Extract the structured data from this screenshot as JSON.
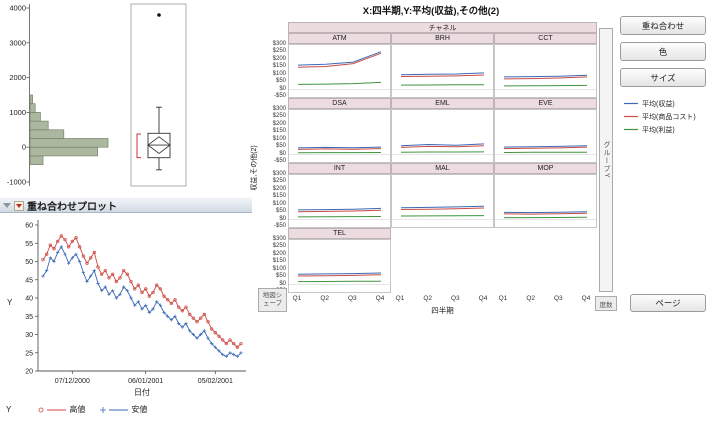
{
  "accent_colors": {
    "blue": "#3b6ab5",
    "red": "#cc4b44",
    "green": "#41953f",
    "histogram_fill": "#abb79e",
    "histogram_border": "#76826b"
  },
  "histogram_panel": {
    "y_ticks": [
      "4000",
      "3000",
      "2000",
      "1000",
      "0",
      "-1000"
    ],
    "chart_data": {
      "type": "bar",
      "orientation": "horizontal",
      "ylim": [
        -1000,
        4000
      ],
      "bins": [
        {
          "from": -500,
          "to": -250,
          "count": 5
        },
        {
          "from": -250,
          "to": 0,
          "count": 26
        },
        {
          "from": 0,
          "to": 250,
          "count": 30
        },
        {
          "from": 250,
          "to": 500,
          "count": 13
        },
        {
          "from": 500,
          "to": 750,
          "count": 7
        },
        {
          "from": 750,
          "to": 1000,
          "count": 4
        },
        {
          "from": 1000,
          "to": 1250,
          "count": 2
        },
        {
          "from": 1250,
          "to": 1500,
          "count": 1
        }
      ],
      "boxplot": {
        "whisker_low": -650,
        "q1": -300,
        "median": 60,
        "q3": 400,
        "whisker_high": 1150,
        "outliers": [
          3800
        ],
        "bracket": [
          -300,
          380
        ],
        "mean_diamond": {
          "top": 300,
          "mid": 60,
          "bottom": -180
        }
      }
    }
  },
  "overlay_panel": {
    "title": "重ね合わせプロット",
    "y_label": "Y",
    "x_label": "日付",
    "legend_label": "Y",
    "y_ticks": [
      60,
      55,
      50,
      45,
      40,
      35,
      30,
      25,
      20
    ],
    "x_ticks": [
      "07/12/2000",
      "06/01/2001",
      "05/02/2001"
    ],
    "chart_data": {
      "type": "line",
      "ylim": [
        20,
        60
      ],
      "x_tick_indices": [
        8,
        28,
        47
      ],
      "series": [
        {
          "name": "高値",
          "color_key": "red",
          "marker": "circle",
          "values": [
            50.5,
            52,
            54.5,
            53.5,
            55.5,
            57,
            56,
            54,
            55.5,
            56.5,
            54,
            51.5,
            49.5,
            51,
            52.5,
            48.5,
            46.5,
            47.5,
            45.5,
            46.5,
            44.5,
            45.5,
            47.5,
            46.5,
            44.5,
            42.5,
            43.5,
            41.5,
            42.5,
            40.5,
            41.5,
            43.5,
            42.5,
            40.5,
            39.5,
            38.5,
            39.5,
            37.5,
            36.5,
            37.5,
            35.5,
            34.5,
            33.5,
            34.5,
            35.5,
            33.5,
            31.5,
            30.5,
            29.5,
            28.5,
            27.5,
            28.5,
            27.5,
            26.5,
            27.5
          ]
        },
        {
          "name": "安値",
          "color_key": "blue",
          "marker": "plus",
          "values": [
            46,
            47.5,
            51,
            50,
            52.5,
            54,
            52,
            49.5,
            51,
            52,
            50,
            47,
            44.5,
            46,
            47.5,
            44,
            42,
            43,
            41,
            42,
            40,
            41,
            43,
            42,
            40,
            38,
            39,
            37,
            38,
            36,
            37,
            39,
            38,
            36,
            35,
            34,
            35,
            33,
            32,
            33,
            31,
            30,
            29,
            30,
            31,
            29,
            27.5,
            26.5,
            25.5,
            24.5,
            24,
            25,
            24.5,
            24,
            25
          ]
        }
      ]
    }
  },
  "graph_builder": {
    "title": "X:四半期,Y:平均(収益),その他(2)",
    "group_header": "チャネル",
    "y_axis_label": "収益,その他(2)",
    "x_axis_label": "四半期",
    "y_ticks": [
      "$300",
      "$250",
      "$200",
      "$150",
      "$100",
      "$50",
      "$0",
      "-$50"
    ],
    "x_ticks": [
      "Q1",
      "Q2",
      "Q3",
      "Q4"
    ],
    "buttons": {
      "overlay": "重ね合わせ",
      "color": "色",
      "size": "サイズ",
      "page": "ページ"
    },
    "drop_zones": {
      "group_y": "グループY",
      "freq": "度数",
      "map_shape": "地図シェープ"
    },
    "legend": [
      {
        "label": "平均(収益)",
        "color_key": "blue"
      },
      {
        "label": "平均(商品コスト)",
        "color_key": "red"
      },
      {
        "label": "平均(利益)",
        "color_key": "green"
      }
    ],
    "chart_data": {
      "type": "line",
      "small_multiples": true,
      "grid_columns": 3,
      "categories": [
        "Q1",
        "Q2",
        "Q3",
        "Q4"
      ],
      "ylim": [
        -50,
        300
      ],
      "series_keys": [
        "revenue",
        "cost",
        "profit"
      ],
      "panels": [
        {
          "name": "ATM",
          "revenue": [
            165,
            170,
            185,
            255
          ],
          "cost": [
            150,
            155,
            175,
            245
          ],
          "profit": [
            35,
            37,
            40,
            48
          ]
        },
        {
          "name": "BRH",
          "revenue": [
            100,
            103,
            105,
            112
          ],
          "cost": [
            88,
            90,
            92,
            98
          ],
          "profit": [
            30,
            31,
            32,
            33
          ]
        },
        {
          "name": "CCT",
          "revenue": [
            85,
            87,
            90,
            97
          ],
          "cost": [
            72,
            74,
            78,
            85
          ],
          "profit": [
            25,
            26,
            27,
            28
          ]
        },
        {
          "name": "DSA",
          "revenue": [
            45,
            48,
            46,
            50
          ],
          "cost": [
            35,
            38,
            36,
            40
          ],
          "profit": [
            12,
            13,
            13,
            14
          ]
        },
        {
          "name": "EML",
          "revenue": [
            60,
            68,
            63,
            72
          ],
          "cost": [
            48,
            55,
            52,
            60
          ],
          "profit": [
            16,
            17,
            17,
            18
          ]
        },
        {
          "name": "EVE",
          "revenue": [
            50,
            52,
            55,
            60
          ],
          "cost": [
            40,
            42,
            45,
            50
          ],
          "profit": [
            14,
            15,
            15,
            16
          ]
        },
        {
          "name": "INT",
          "revenue": [
            65,
            67,
            70,
            75
          ],
          "cost": [
            52,
            55,
            58,
            63
          ],
          "profit": [
            18,
            19,
            20,
            21
          ]
        },
        {
          "name": "MAL",
          "revenue": [
            80,
            82,
            85,
            90
          ],
          "cost": [
            68,
            70,
            73,
            78
          ],
          "profit": [
            24,
            25,
            26,
            27
          ]
        },
        {
          "name": "MOP",
          "revenue": [
            48,
            47,
            49,
            52
          ],
          "cost": [
            38,
            37,
            39,
            42
          ],
          "profit": [
            13,
            13,
            14,
            15
          ]
        },
        {
          "name": "TEL",
          "revenue": [
            70,
            72,
            74,
            78
          ],
          "cost": [
            58,
            60,
            62,
            66
          ],
          "profit": [
            20,
            21,
            22,
            23
          ]
        }
      ]
    }
  }
}
